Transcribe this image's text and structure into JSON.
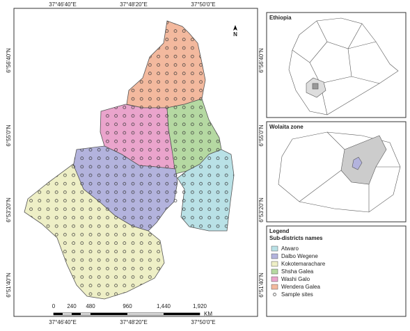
{
  "map": {
    "lon_labels": [
      "37°46'40\"E",
      "37°48'20\"E",
      "37°50'0\"E"
    ],
    "lat_labels": [
      "6°56'40\"N",
      "6°55'0\"N",
      "6°53'20\"N",
      "6°51'40\"N"
    ],
    "north_label": "N",
    "scale_bar": {
      "labels": [
        "0",
        "240",
        "480",
        "960",
        "1,440",
        "1,920"
      ],
      "unit": "KM"
    }
  },
  "insets": [
    {
      "title": "Ethiopia"
    },
    {
      "title": "Wolaita zone"
    }
  ],
  "legend": {
    "title": "Legend",
    "subtitle": "Sub-districts names",
    "items": [
      {
        "label": "Atwaro",
        "color": "#b9e1e6"
      },
      {
        "label": "Dalbo Wegene",
        "color": "#b3b3dd"
      },
      {
        "label": "Kokotemarachare",
        "color": "#eeefc6"
      },
      {
        "label": "Shsha Galea",
        "color": "#b5d9a2"
      },
      {
        "label": "Washi Galo",
        "color": "#eaa4cc"
      },
      {
        "label": "Wendera Galea",
        "color": "#f3b99e"
      }
    ],
    "sample_label": "Sample sites"
  }
}
